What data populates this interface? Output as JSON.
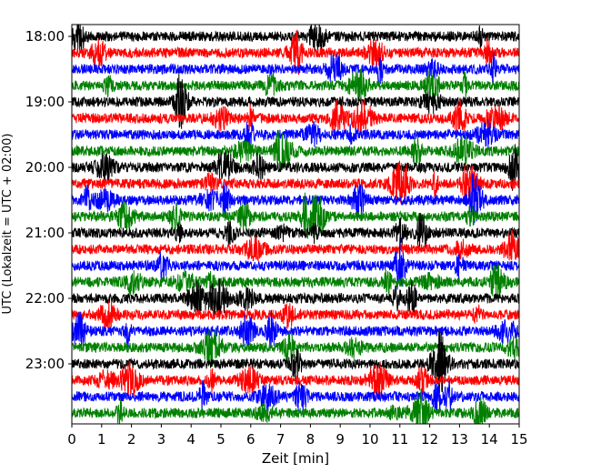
{
  "chart_data": {
    "type": "line",
    "title": "",
    "xlabel": "Zeit  [min]",
    "ylabel": "UTC (Lokalzeit = UTC + 02:00)",
    "xlim": [
      0,
      15
    ],
    "x_ticks": [
      0,
      1,
      2,
      3,
      4,
      5,
      6,
      7,
      8,
      9,
      10,
      11,
      12,
      13,
      14,
      15
    ],
    "x_tick_labels": [
      "0",
      "1",
      "2",
      "3",
      "4",
      "5",
      "6",
      "7",
      "8",
      "9",
      "10",
      "11",
      "12",
      "13",
      "14",
      "15"
    ],
    "y_tick_labels": [
      "18:00",
      "19:00",
      "20:00",
      "21:00",
      "22:00",
      "23:00"
    ],
    "y_ticks_trace_index": [
      0,
      4,
      8,
      12,
      16,
      20
    ],
    "trace_interval_minutes": 15,
    "trace_start_labels": [
      "18:00",
      "18:15",
      "18:30",
      "18:45",
      "19:00",
      "19:15",
      "19:30",
      "19:45",
      "20:00",
      "20:15",
      "20:30",
      "20:45",
      "21:00",
      "21:15",
      "21:30",
      "21:45",
      "22:00",
      "22:15",
      "22:30",
      "22:45",
      "23:00",
      "23:15",
      "23:30",
      "23:45"
    ],
    "color_cycle": [
      "#000000",
      "#ff0000",
      "#0000ff",
      "#008000"
    ],
    "grid": false,
    "legend": "none"
  }
}
